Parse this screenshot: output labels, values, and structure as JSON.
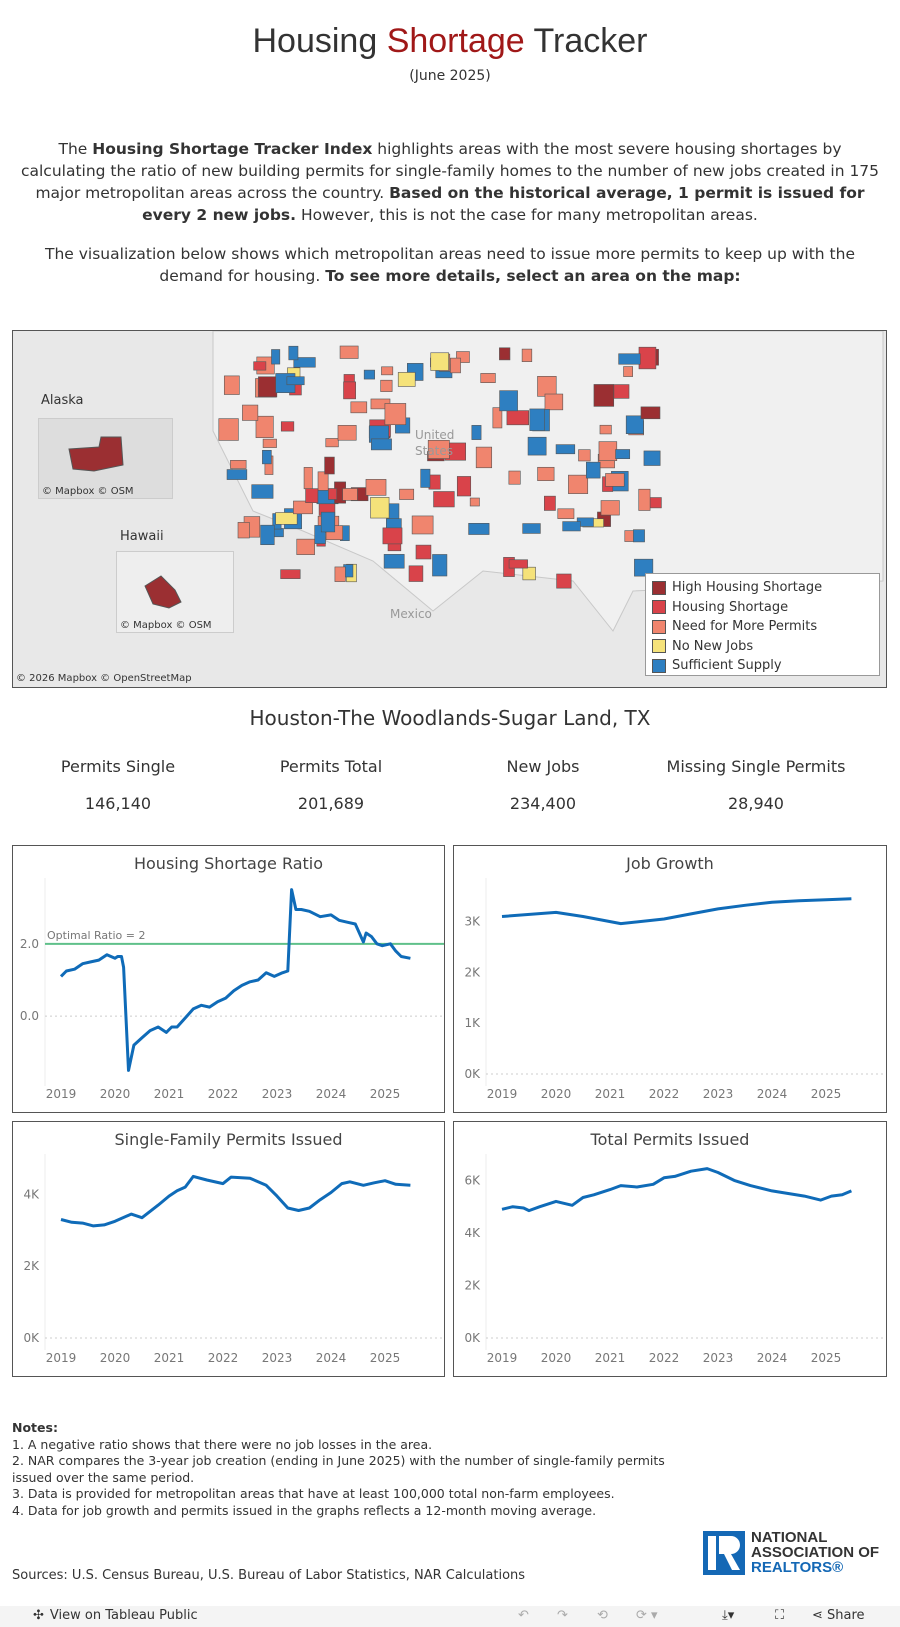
{
  "header": {
    "title_pre": "Housing ",
    "title_accent": "Shortage",
    "title_post": " Tracker",
    "subtitle": "(June 2025)"
  },
  "intro": {
    "p1_a": "The ",
    "p1_b": "Housing Shortage Tracker Index",
    "p1_c": " highlights areas with the most severe housing shortages by calculating the ratio of new building permits for single-family homes to the number of new jobs created in 175 major metropolitan areas across the country. ",
    "p1_d": "Based on the historical average, 1 permit is issued for every 2 new jobs.",
    "p1_e": " However, this is not the case for many metropolitan areas.",
    "p2_a": "The visualization below shows which metropolitan areas need to issue more permits to keep up with the demand for housing. ",
    "p2_b": "To see more details, select an area on the map:"
  },
  "map": {
    "labels": {
      "alaska": "Alaska",
      "hawaii": "Hawaii",
      "us": "United States",
      "mexico": "Mexico"
    },
    "inset_credit": "© Mapbox  © OSM",
    "credit": "© 2026 Mapbox  © OpenStreetMap",
    "legend": [
      {
        "label": "High Housing Shortage",
        "color": "#9b2f32"
      },
      {
        "label": "Housing Shortage",
        "color": "#d9434a"
      },
      {
        "label": "Need for More Permits",
        "color": "#f0856e"
      },
      {
        "label": "No New Jobs",
        "color": "#f5e27a"
      },
      {
        "label": "Sufficient Supply",
        "color": "#2e7fc1"
      }
    ]
  },
  "selection": {
    "metro": "Houston-The Woodlands-Sugar Land, TX",
    "stats": [
      {
        "label": "Permits Single",
        "value": "146,140"
      },
      {
        "label": "Permits Total",
        "value": "201,689"
      },
      {
        "label": "New Jobs",
        "value": "234,400"
      },
      {
        "label": "Missing Single Permits",
        "value": "28,940"
      }
    ]
  },
  "chart_data": [
    {
      "type": "line",
      "title": "Housing Shortage Ratio",
      "x_ticks": [
        "2019",
        "2020",
        "2021",
        "2022",
        "2023",
        "2024",
        "2025"
      ],
      "y_ticks": [
        "0.0",
        "2.0"
      ],
      "ylim": [
        -1.6,
        3.6
      ],
      "reference_line": {
        "value": 2,
        "label": "Optimal Ratio = 2",
        "color": "#5fc08a"
      },
      "x": [
        2019.0,
        2019.1,
        2019.25,
        2019.4,
        2019.55,
        2019.7,
        2019.85,
        2020.0,
        2020.05,
        2020.12,
        2020.16,
        2020.25,
        2020.35,
        2020.5,
        2020.65,
        2020.8,
        2020.95,
        2021.05,
        2021.15,
        2021.3,
        2021.45,
        2021.6,
        2021.75,
        2021.9,
        2022.05,
        2022.2,
        2022.35,
        2022.5,
        2022.65,
        2022.8,
        2022.95,
        2023.1,
        2023.2,
        2023.27,
        2023.35,
        2023.45,
        2023.6,
        2023.8,
        2024.0,
        2024.15,
        2024.3,
        2024.45,
        2024.6,
        2024.65,
        2024.75,
        2024.85,
        2024.95,
        2025.1,
        2025.2,
        2025.3,
        2025.47
      ],
      "values": [
        1.1,
        1.25,
        1.3,
        1.45,
        1.5,
        1.55,
        1.7,
        1.6,
        1.65,
        1.65,
        1.35,
        -1.5,
        -0.8,
        -0.6,
        -0.4,
        -0.3,
        -0.45,
        -0.3,
        -0.3,
        -0.05,
        0.2,
        0.3,
        0.25,
        0.4,
        0.5,
        0.7,
        0.85,
        0.95,
        1.0,
        1.2,
        1.1,
        1.2,
        1.25,
        3.5,
        2.95,
        2.95,
        2.9,
        2.75,
        2.8,
        2.65,
        2.6,
        2.55,
        2.05,
        2.3,
        2.2,
        2.0,
        1.95,
        2.0,
        1.8,
        1.65,
        1.6
      ],
      "color": "#0f6bb8"
    },
    {
      "type": "line",
      "title": "Job Growth",
      "x_ticks": [
        "2019",
        "2020",
        "2021",
        "2022",
        "2023",
        "2024",
        "2025"
      ],
      "y_ticks": [
        "0K",
        "1K",
        "2K",
        "3K"
      ],
      "ylim": [
        0,
        3.7
      ],
      "x": [
        2019.0,
        2020.0,
        2020.5,
        2021.2,
        2022.0,
        2022.5,
        2023.0,
        2023.5,
        2024.0,
        2024.5,
        2025.0,
        2025.47
      ],
      "values": [
        3.1,
        3.18,
        3.1,
        2.96,
        3.05,
        3.15,
        3.25,
        3.32,
        3.38,
        3.41,
        3.43,
        3.45
      ],
      "color": "#0f6bb8"
    },
    {
      "type": "line",
      "title": "Single-Family Permits Issued",
      "x_ticks": [
        "2019",
        "2020",
        "2021",
        "2022",
        "2023",
        "2024",
        "2025"
      ],
      "y_ticks": [
        "0K",
        "2K",
        "4K"
      ],
      "ylim": [
        0,
        4.9
      ],
      "x": [
        2019.0,
        2019.2,
        2019.4,
        2019.6,
        2019.8,
        2020.0,
        2020.3,
        2020.5,
        2020.8,
        2021.0,
        2021.15,
        2021.3,
        2021.45,
        2021.7,
        2022.0,
        2022.15,
        2022.5,
        2022.8,
        2023.0,
        2023.2,
        2023.4,
        2023.6,
        2023.8,
        2024.0,
        2024.2,
        2024.35,
        2024.6,
        2024.8,
        2025.0,
        2025.2,
        2025.47
      ],
      "values": [
        3.3,
        3.22,
        3.2,
        3.12,
        3.15,
        3.25,
        3.45,
        3.35,
        3.7,
        3.95,
        4.1,
        4.2,
        4.5,
        4.4,
        4.3,
        4.48,
        4.45,
        4.25,
        3.95,
        3.62,
        3.55,
        3.62,
        3.85,
        4.05,
        4.3,
        4.35,
        4.25,
        4.32,
        4.38,
        4.28,
        4.25
      ],
      "color": "#0f6bb8"
    },
    {
      "type": "line",
      "title": "Total Permits Issued",
      "x_ticks": [
        "2019",
        "2020",
        "2021",
        "2022",
        "2023",
        "2024",
        "2025"
      ],
      "y_ticks": [
        "0K",
        "2K",
        "4K",
        "6K"
      ],
      "ylim": [
        0,
        6.7
      ],
      "x": [
        2019.0,
        2019.2,
        2019.4,
        2019.5,
        2019.7,
        2020.0,
        2020.3,
        2020.5,
        2020.7,
        2021.0,
        2021.2,
        2021.5,
        2021.8,
        2022.0,
        2022.2,
        2022.5,
        2022.8,
        2023.0,
        2023.3,
        2023.6,
        2024.0,
        2024.3,
        2024.6,
        2024.9,
        2025.1,
        2025.3,
        2025.47
      ],
      "values": [
        4.9,
        5.0,
        4.95,
        4.85,
        5.0,
        5.2,
        5.05,
        5.35,
        5.45,
        5.65,
        5.8,
        5.75,
        5.85,
        6.1,
        6.15,
        6.35,
        6.45,
        6.3,
        6.0,
        5.8,
        5.6,
        5.5,
        5.4,
        5.25,
        5.4,
        5.45,
        5.6
      ],
      "color": "#0f6bb8"
    }
  ],
  "notes": {
    "heading": "Notes:",
    "items": [
      "1. A negative ratio shows that there were no job losses in the area.",
      "2. NAR compares the 3-year job creation (ending in June 2025) with the number of single-family permits issued over the same period.",
      "3. Data is provided for metropolitan areas that have at least 100,000 total non-farm employees.",
      "4. Data for job growth and permits issued in the graphs reflects a 12-month moving average."
    ]
  },
  "sources": "Sources: U.S. Census Bureau, U.S. Bureau of Labor Statistics, NAR Calculations",
  "logo": {
    "line1": "NATIONAL",
    "line2": "ASSOCIATION OF",
    "line3": "REALTORS®",
    "color": "#1468b5"
  },
  "toolbar": {
    "view_on": "View on Tableau Public",
    "share": "Share"
  }
}
